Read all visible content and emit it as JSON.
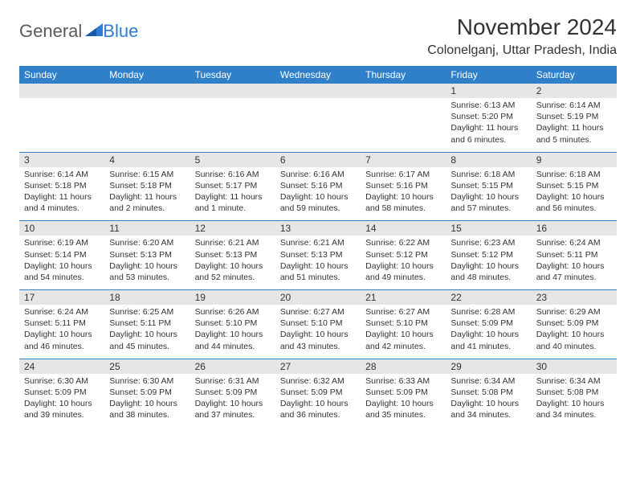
{
  "brand": {
    "part1": "General",
    "part2": "Blue"
  },
  "title": "November 2024",
  "location": "Colonelganj, Uttar Pradesh, India",
  "colors": {
    "header_bg": "#2f80c9",
    "header_text": "#ffffff",
    "date_strip_bg": "#e6e6e6",
    "text": "#333333",
    "rule": "#2f80c9"
  },
  "day_headers": [
    "Sunday",
    "Monday",
    "Tuesday",
    "Wednesday",
    "Thursday",
    "Friday",
    "Saturday"
  ],
  "weeks": [
    {
      "dates": [
        "",
        "",
        "",
        "",
        "",
        "1",
        "2"
      ],
      "cells": [
        null,
        null,
        null,
        null,
        null,
        {
          "sunrise": "6:13 AM",
          "sunset": "5:20 PM",
          "daylight": "11 hours and 6 minutes."
        },
        {
          "sunrise": "6:14 AM",
          "sunset": "5:19 PM",
          "daylight": "11 hours and 5 minutes."
        }
      ]
    },
    {
      "dates": [
        "3",
        "4",
        "5",
        "6",
        "7",
        "8",
        "9"
      ],
      "cells": [
        {
          "sunrise": "6:14 AM",
          "sunset": "5:18 PM",
          "daylight": "11 hours and 4 minutes."
        },
        {
          "sunrise": "6:15 AM",
          "sunset": "5:18 PM",
          "daylight": "11 hours and 2 minutes."
        },
        {
          "sunrise": "6:16 AM",
          "sunset": "5:17 PM",
          "daylight": "11 hours and 1 minute."
        },
        {
          "sunrise": "6:16 AM",
          "sunset": "5:16 PM",
          "daylight": "10 hours and 59 minutes."
        },
        {
          "sunrise": "6:17 AM",
          "sunset": "5:16 PM",
          "daylight": "10 hours and 58 minutes."
        },
        {
          "sunrise": "6:18 AM",
          "sunset": "5:15 PM",
          "daylight": "10 hours and 57 minutes."
        },
        {
          "sunrise": "6:18 AM",
          "sunset": "5:15 PM",
          "daylight": "10 hours and 56 minutes."
        }
      ]
    },
    {
      "dates": [
        "10",
        "11",
        "12",
        "13",
        "14",
        "15",
        "16"
      ],
      "cells": [
        {
          "sunrise": "6:19 AM",
          "sunset": "5:14 PM",
          "daylight": "10 hours and 54 minutes."
        },
        {
          "sunrise": "6:20 AM",
          "sunset": "5:13 PM",
          "daylight": "10 hours and 53 minutes."
        },
        {
          "sunrise": "6:21 AM",
          "sunset": "5:13 PM",
          "daylight": "10 hours and 52 minutes."
        },
        {
          "sunrise": "6:21 AM",
          "sunset": "5:13 PM",
          "daylight": "10 hours and 51 minutes."
        },
        {
          "sunrise": "6:22 AM",
          "sunset": "5:12 PM",
          "daylight": "10 hours and 49 minutes."
        },
        {
          "sunrise": "6:23 AM",
          "sunset": "5:12 PM",
          "daylight": "10 hours and 48 minutes."
        },
        {
          "sunrise": "6:24 AM",
          "sunset": "5:11 PM",
          "daylight": "10 hours and 47 minutes."
        }
      ]
    },
    {
      "dates": [
        "17",
        "18",
        "19",
        "20",
        "21",
        "22",
        "23"
      ],
      "cells": [
        {
          "sunrise": "6:24 AM",
          "sunset": "5:11 PM",
          "daylight": "10 hours and 46 minutes."
        },
        {
          "sunrise": "6:25 AM",
          "sunset": "5:11 PM",
          "daylight": "10 hours and 45 minutes."
        },
        {
          "sunrise": "6:26 AM",
          "sunset": "5:10 PM",
          "daylight": "10 hours and 44 minutes."
        },
        {
          "sunrise": "6:27 AM",
          "sunset": "5:10 PM",
          "daylight": "10 hours and 43 minutes."
        },
        {
          "sunrise": "6:27 AM",
          "sunset": "5:10 PM",
          "daylight": "10 hours and 42 minutes."
        },
        {
          "sunrise": "6:28 AM",
          "sunset": "5:09 PM",
          "daylight": "10 hours and 41 minutes."
        },
        {
          "sunrise": "6:29 AM",
          "sunset": "5:09 PM",
          "daylight": "10 hours and 40 minutes."
        }
      ]
    },
    {
      "dates": [
        "24",
        "25",
        "26",
        "27",
        "28",
        "29",
        "30"
      ],
      "cells": [
        {
          "sunrise": "6:30 AM",
          "sunset": "5:09 PM",
          "daylight": "10 hours and 39 minutes."
        },
        {
          "sunrise": "6:30 AM",
          "sunset": "5:09 PM",
          "daylight": "10 hours and 38 minutes."
        },
        {
          "sunrise": "6:31 AM",
          "sunset": "5:09 PM",
          "daylight": "10 hours and 37 minutes."
        },
        {
          "sunrise": "6:32 AM",
          "sunset": "5:09 PM",
          "daylight": "10 hours and 36 minutes."
        },
        {
          "sunrise": "6:33 AM",
          "sunset": "5:09 PM",
          "daylight": "10 hours and 35 minutes."
        },
        {
          "sunrise": "6:34 AM",
          "sunset": "5:08 PM",
          "daylight": "10 hours and 34 minutes."
        },
        {
          "sunrise": "6:34 AM",
          "sunset": "5:08 PM",
          "daylight": "10 hours and 34 minutes."
        }
      ]
    }
  ],
  "labels": {
    "sunrise": "Sunrise:",
    "sunset": "Sunset:",
    "daylight": "Daylight:"
  }
}
